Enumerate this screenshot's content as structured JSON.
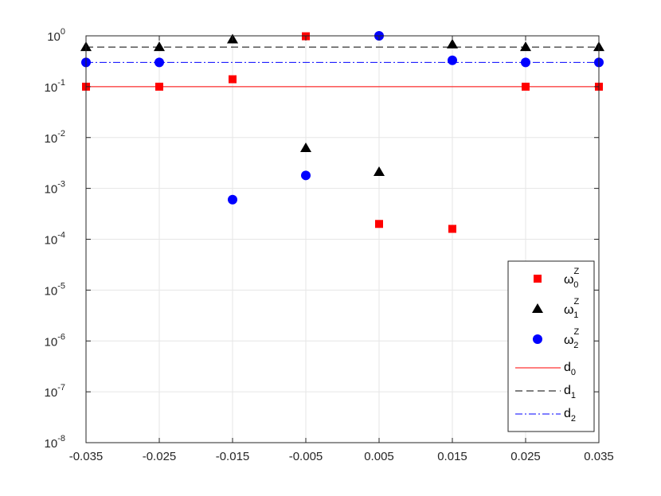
{
  "chart_data": {
    "type": "scatter",
    "title": "",
    "xlabel": "",
    "ylabel": "",
    "x_scale": "linear",
    "y_scale": "log",
    "xlim": [
      -0.035,
      0.035
    ],
    "ylim": [
      1e-08,
      1
    ],
    "grid": true,
    "legend_position": "bottom-right",
    "x_ticks": [
      -0.035,
      -0.025,
      -0.015,
      -0.005,
      0.005,
      0.015,
      0.025,
      0.035
    ],
    "x_tick_labels": [
      "-0.035",
      "-0.025",
      "-0.015",
      "-0.005",
      "0.005",
      "0.015",
      "0.025",
      "0.035"
    ],
    "y_ticks": [
      {
        "value": 1e-08,
        "base": "10",
        "exp": "-8"
      },
      {
        "value": 1e-07,
        "base": "10",
        "exp": "-7"
      },
      {
        "value": 1e-06,
        "base": "10",
        "exp": "-6"
      },
      {
        "value": 1e-05,
        "base": "10",
        "exp": "-5"
      },
      {
        "value": 0.0001,
        "base": "10",
        "exp": "-4"
      },
      {
        "value": 0.001,
        "base": "10",
        "exp": "-3"
      },
      {
        "value": 0.01,
        "base": "10",
        "exp": "-2"
      },
      {
        "value": 0.1,
        "base": "10",
        "exp": "-1"
      },
      {
        "value": 1,
        "base": "10",
        "exp": "0"
      }
    ],
    "series": [
      {
        "name": "ω0Z",
        "label_base": "ω",
        "label_sub": "0",
        "label_sup": "Z",
        "marker": "square",
        "color": "#ff0000",
        "points": [
          {
            "x": -0.035,
            "y": 0.1
          },
          {
            "x": -0.025,
            "y": 0.1
          },
          {
            "x": -0.015,
            "y": 0.14
          },
          {
            "x": -0.005,
            "y": 0.98
          },
          {
            "x": 0.005,
            "y": 0.0002
          },
          {
            "x": 0.015,
            "y": 0.00016
          },
          {
            "x": 0.025,
            "y": 0.1
          },
          {
            "x": 0.035,
            "y": 0.1
          }
        ]
      },
      {
        "name": "ω1Z",
        "label_base": "ω",
        "label_sub": "1",
        "label_sup": "Z",
        "marker": "triangle",
        "color": "#000000",
        "points": [
          {
            "x": -0.035,
            "y": 0.6
          },
          {
            "x": -0.025,
            "y": 0.6
          },
          {
            "x": -0.015,
            "y": 0.85
          },
          {
            "x": -0.005,
            "y": 0.0062
          },
          {
            "x": 0.005,
            "y": 0.0021
          },
          {
            "x": 0.015,
            "y": 0.68
          },
          {
            "x": 0.025,
            "y": 0.6
          },
          {
            "x": 0.035,
            "y": 0.6
          }
        ]
      },
      {
        "name": "ω2Z",
        "label_base": "ω",
        "label_sub": "2",
        "label_sup": "Z",
        "marker": "circle",
        "color": "#0000ff",
        "points": [
          {
            "x": -0.035,
            "y": 0.3
          },
          {
            "x": -0.025,
            "y": 0.3
          },
          {
            "x": -0.015,
            "y": 0.0006
          },
          {
            "x": -0.005,
            "y": 0.0018
          },
          {
            "x": 0.005,
            "y": 1.0
          },
          {
            "x": 0.015,
            "y": 0.33
          },
          {
            "x": 0.025,
            "y": 0.3
          },
          {
            "x": 0.035,
            "y": 0.3
          }
        ]
      }
    ],
    "reference_lines": [
      {
        "name": "d0",
        "label_base": "d",
        "label_sub": "0",
        "y": 0.1,
        "style": "solid",
        "color": "#ff0000"
      },
      {
        "name": "d1",
        "label_base": "d",
        "label_sub": "1",
        "y": 0.6,
        "style": "dashed",
        "color": "#000000"
      },
      {
        "name": "d2",
        "label_base": "d",
        "label_sub": "2",
        "y": 0.3,
        "style": "dashdot",
        "color": "#0000ff"
      }
    ]
  }
}
